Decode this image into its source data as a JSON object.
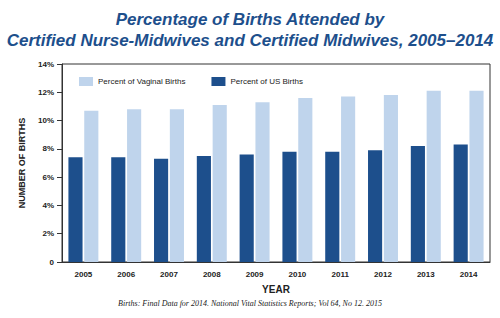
{
  "chart_data": {
    "type": "bar",
    "title": "Percentage of Births Attended by\nCertified Nurse-Midwives and Certified Midwives, 2005–2014",
    "x_label": "YEAR",
    "y_label": "NUMBER OF BIRTHS",
    "source": "Births: Final Data for 2014. National Vital Statistics Reports; Vol 64, No 12. 2015",
    "categories": [
      "2005",
      "2006",
      "2007",
      "2008",
      "2009",
      "2010",
      "2011",
      "2012",
      "2013",
      "2014"
    ],
    "series": [
      {
        "name": "Percent of US Births",
        "color": "#1d4f8c",
        "values": [
          7.4,
          7.4,
          7.3,
          7.5,
          7.6,
          7.8,
          7.8,
          7.9,
          8.2,
          8.3
        ]
      },
      {
        "name": "Percent of Vaginal Births",
        "color": "#bfd4ec",
        "values": [
          10.7,
          10.8,
          10.8,
          11.1,
          11.3,
          11.6,
          11.7,
          11.8,
          12.1,
          12.1
        ]
      }
    ],
    "ylim": [
      0,
      14
    ],
    "yticks": [
      0,
      {
        "value": 2,
        "label": "2%"
      },
      {
        "value": 4,
        "label": "4%"
      },
      {
        "value": 6,
        "label": "6%"
      },
      {
        "value": 8,
        "label": "8%"
      },
      {
        "value": 10,
        "label": "10%"
      },
      {
        "value": 12,
        "label": "12%"
      },
      {
        "value": 14,
        "label": "14%"
      }
    ],
    "grid": false,
    "legend": "top-left"
  }
}
